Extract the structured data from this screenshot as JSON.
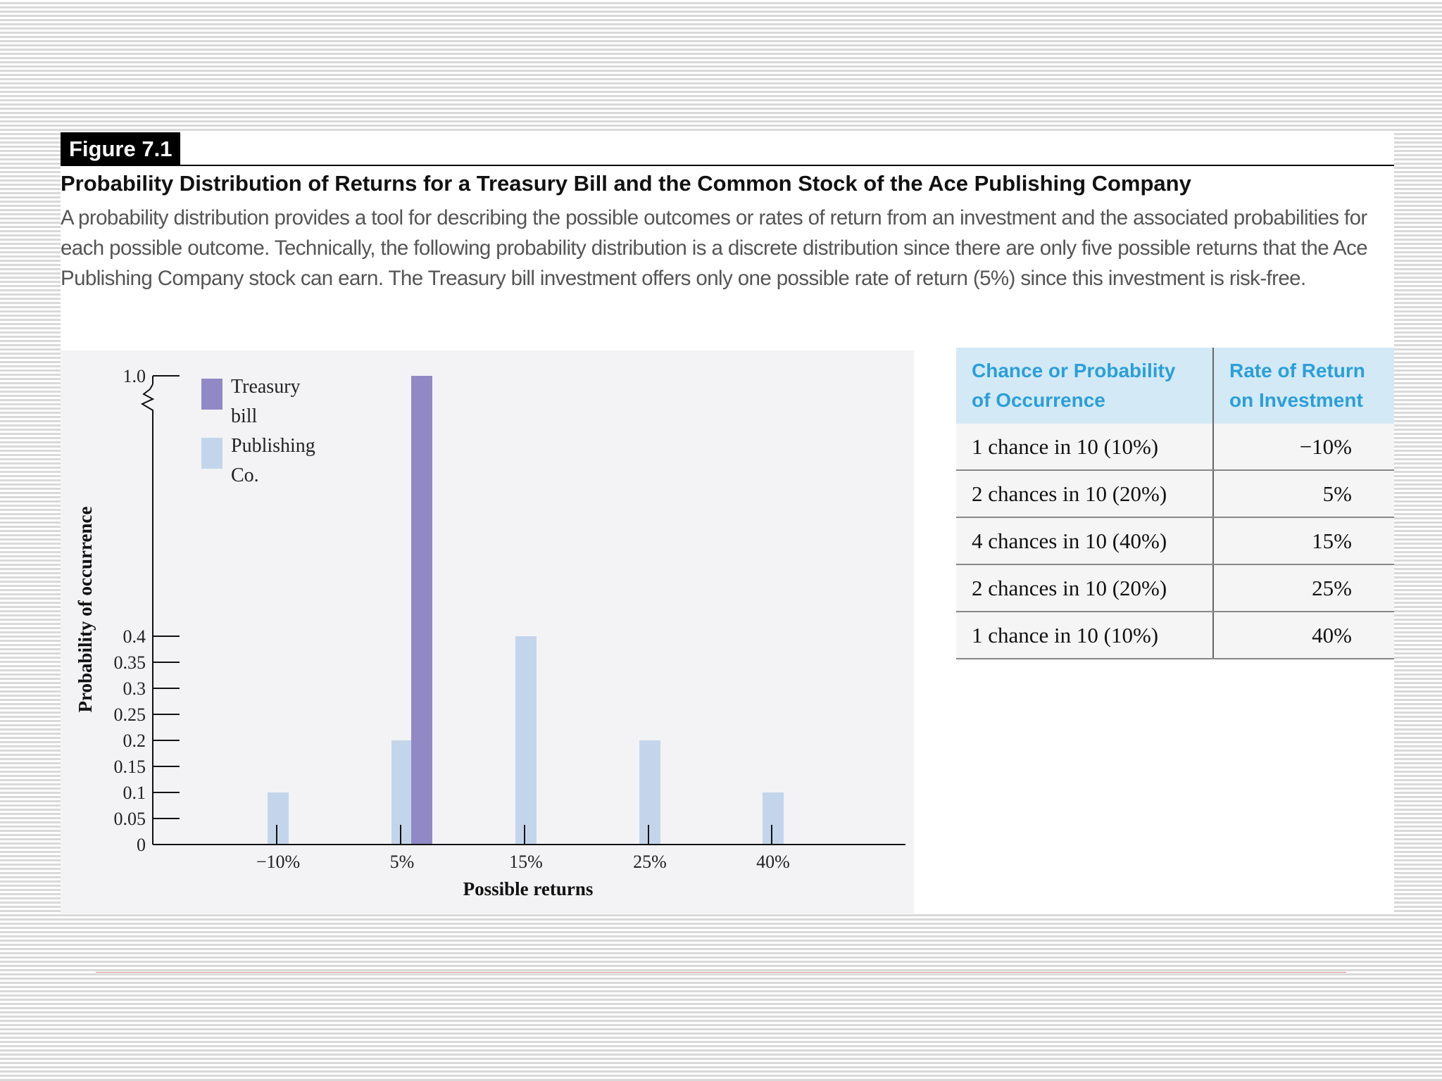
{
  "figure": {
    "label": "Figure 7.1",
    "title": "Probability Distribution of Returns for a Treasury Bill and the Common Stock of the Ace Publishing Company",
    "caption": "A probability distribution provides a tool for describing the possible outcomes or rates of return from an investment and the associated probabilities for each possible outcome. Technically, the following probability distribution is a discrete distribution since there are only five possible returns that the Ace Publishing Company stock can earn. The Treasury bill investment offers only one possible rate of return (5%) since this investment is risk-free."
  },
  "colors": {
    "treasury": "#9189c6",
    "publishing": "#c3d5eb",
    "table_header_bg": "#d4e9f6",
    "table_header_text": "#2b9fd9"
  },
  "chart_data": {
    "type": "bar",
    "xlabel": "Possible returns",
    "ylabel": "Probability of occurrence",
    "categories": [
      "−10%",
      "5%",
      "15%",
      "25%",
      "40%"
    ],
    "yticks": [
      "0",
      "0.05",
      "0.1",
      "0.15",
      "0.2",
      "0.25",
      "0.3",
      "0.35",
      "0.4",
      "1.0"
    ],
    "ylim": [
      0,
      1.0
    ],
    "y_axis_break": "between 0.4 and 1.0",
    "grid": false,
    "legend_position": "top-left",
    "series": [
      {
        "name": "Publishing Co.",
        "label_lines": [
          "Publishing",
          "Co."
        ],
        "color": "#c3d5eb",
        "values": [
          0.1,
          0.2,
          0.4,
          0.2,
          0.1
        ]
      },
      {
        "name": "Treasury bill",
        "label_lines": [
          "Treasury",
          "bill"
        ],
        "color": "#9189c6",
        "values": [
          null,
          1.0,
          null,
          null,
          null
        ]
      }
    ]
  },
  "table": {
    "headers": [
      "Chance or Probability of Occurrence",
      "Rate of Return on Investment"
    ],
    "rows": [
      [
        "1 chance in 10 (10%)",
        "−10%"
      ],
      [
        "2 chances in 10 (20%)",
        "5%"
      ],
      [
        "4 chances in 10 (40%)",
        "15%"
      ],
      [
        "2 chances in 10 (20%)",
        "25%"
      ],
      [
        "1 chance in 10 (10%)",
        "40%"
      ]
    ]
  }
}
